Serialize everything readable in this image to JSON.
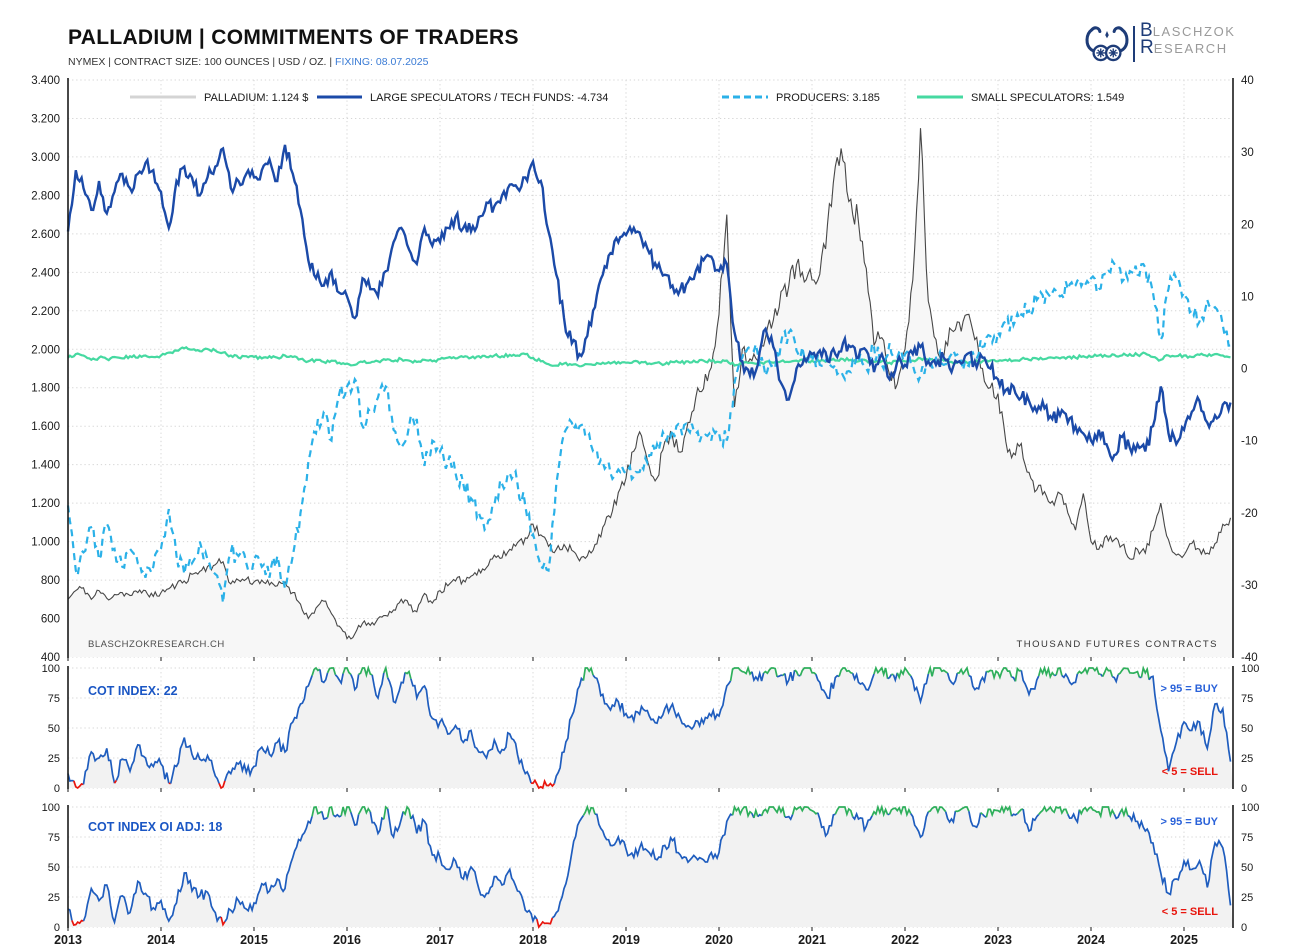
{
  "header": {
    "title": "PALLADIUM | COMMITMENTS OF TRADERS",
    "subtitle": "NYMEX | CONTRACT SIZE: 100 OUNCES | USD / OZ. |",
    "fixing": "FIXING: 08.07.2025"
  },
  "logo": {
    "line1_initial": "B",
    "line1_rest": "LASCHZOK",
    "line2_initial": "R",
    "line2_rest": "ESEARCH"
  },
  "watermark": "BLASCHZOKRESEARCH.CH",
  "right_note": "THOUSAND FUTURES CONTRACTS",
  "annotations": {
    "buy": "> 95 = BUY",
    "sell": "< 5 = SELL"
  },
  "colors": {
    "palladium": "#474747",
    "palladium_fill": "#f7f7f7",
    "palladium_legend": "#d4d4d4",
    "large_specs": "#1b4aa8",
    "producers": "#2bb1e8",
    "small_specs": "#46d9a1",
    "cot_blue": "#1f5dbe",
    "cot_green": "#2eaf5b",
    "cot_red": "#e8150d",
    "cot_fill": "#f2f2f2",
    "grid": "#d6d6d6",
    "axis": "#1a1a1a",
    "label_blue": "#1a56c4"
  },
  "chart_data": {
    "type": "line",
    "x_start": 2013.0,
    "x_step": "1 month",
    "x_ticks": [
      "2013",
      "2014",
      "2015",
      "2016",
      "2017",
      "2018",
      "2019",
      "2020",
      "2021",
      "2022",
      "2023",
      "2024",
      "2025"
    ],
    "main": {
      "left_axis": {
        "min": 400,
        "max": 3400,
        "tick_step": 200,
        "tick_labels": [
          "3.400",
          "3.200",
          "3.000",
          "2.800",
          "2.600",
          "2.400",
          "2.200",
          "2.000",
          "1.800",
          "1.600",
          "1.400",
          "1.200",
          "1.000",
          "800",
          "600",
          "400"
        ]
      },
      "right_axis": {
        "min": -40,
        "max": 40,
        "tick_step": 10,
        "tick_labels": [
          "40",
          "30",
          "20",
          "10",
          "0",
          "-10",
          "-20",
          "-30",
          "-40"
        ]
      },
      "series": [
        {
          "name": "PALLADIUM: 1.124 $",
          "axis": "left",
          "style": "solid-fill",
          "noise": 0.027,
          "values": [
            700,
            745,
            760,
            700,
            745,
            705,
            725,
            735,
            720,
            735,
            745,
            715,
            735,
            755,
            775,
            795,
            830,
            845,
            870,
            880,
            895,
            780,
            800,
            805,
            790,
            800,
            775,
            770,
            790,
            735,
            675,
            600,
            655,
            690,
            625,
            560,
            495,
            520,
            575,
            565,
            600,
            615,
            645,
            700,
            670,
            635,
            730,
            680,
            745,
            770,
            795,
            800,
            820,
            855,
            865,
            930,
            915,
            960,
            995,
            1020,
            1090,
            1035,
            975,
            960,
            985,
            955,
            900,
            925,
            985,
            1075,
            1125,
            1255,
            1330,
            1470,
            1550,
            1390,
            1330,
            1520,
            1545,
            1465,
            1620,
            1750,
            1795,
            1905,
            2180,
            2700,
            1700,
            2000,
            1950,
            1940,
            2060,
            2150,
            2300,
            2330,
            2440,
            2350,
            2360,
            2390,
            2650,
            2950,
            2980,
            2780,
            2660,
            2420,
            2020,
            2060,
            1870,
            1820,
            2000,
            2360,
            3150,
            2250,
            2050,
            1960,
            2100,
            2140,
            2180,
            2050,
            1900,
            1800,
            1770,
            1520,
            1460,
            1510,
            1360,
            1270,
            1260,
            1210,
            1250,
            1150,
            1060,
            1250,
            1000,
            960,
            1030,
            1010,
            980,
            910,
            960,
            940,
            1060,
            1200,
            1010,
            930,
            930,
            990,
            960,
            940,
            990,
            1090,
            1124
          ]
        },
        {
          "name": "LARGE SPECULATORS / TECH FUNDS: -4.734",
          "axis": "right",
          "style": "solid",
          "noise": 1.05,
          "values": [
            19,
            27.5,
            25,
            22,
            26,
            21.5,
            24.5,
            27,
            25,
            27,
            28.5,
            27.5,
            24.5,
            19.5,
            26,
            28,
            26.5,
            24,
            26.5,
            28,
            30.5,
            25,
            26,
            27,
            26.5,
            27.5,
            29,
            26,
            31,
            27,
            22,
            15,
            12.5,
            11.5,
            13.5,
            10.5,
            10,
            7,
            12.5,
            11,
            10,
            13.5,
            17.5,
            19.5,
            16.5,
            14.5,
            19.5,
            17,
            17.5,
            19.5,
            21,
            19.5,
            19,
            21,
            23,
            22.5,
            24,
            25.5,
            25,
            26.5,
            28.7,
            26,
            19,
            13,
            7,
            3.5,
            2,
            4.5,
            8.5,
            13,
            16,
            17.5,
            18.5,
            19.5,
            18,
            16,
            14,
            13,
            11.5,
            11,
            12,
            13.5,
            15,
            15.5,
            13.5,
            14.5,
            5,
            1,
            -1,
            0.5,
            5.5,
            3,
            -2,
            -4.3,
            0,
            1.5,
            2,
            2.5,
            1,
            2,
            3.5,
            3,
            1.5,
            2.5,
            -0.5,
            2,
            -1.5,
            1,
            0.5,
            2,
            3,
            1,
            0.5,
            1.5,
            -0.5,
            1,
            2,
            1,
            1.5,
            0,
            -1.5,
            -3,
            -2.5,
            -4,
            -4.5,
            -6,
            -5.5,
            -7,
            -6.5,
            -7.5,
            -8,
            -9,
            -10,
            -8.5,
            -10.5,
            -12,
            -9.5,
            -11,
            -10.5,
            -11.5,
            -8,
            -2.5,
            -9,
            -10.5,
            -8.5,
            -6,
            -4.5,
            -7.5,
            -6.5,
            -5,
            -4.734
          ]
        },
        {
          "name": "PRODUCERS: 3.185",
          "axis": "right",
          "style": "dashed",
          "noise": 1.35,
          "values": [
            -19,
            -28,
            -25.5,
            -22,
            -26.5,
            -21.5,
            -25,
            -27.5,
            -25,
            -27,
            -29,
            -27.5,
            -25,
            -19.5,
            -26,
            -28.5,
            -27,
            -24,
            -26.5,
            -28.5,
            -32.5,
            -25.5,
            -26,
            -27,
            -26.5,
            -27.5,
            -29,
            -26,
            -30.5,
            -26,
            -20,
            -13,
            -9,
            -6,
            -10,
            -3.5,
            -2.5,
            -1.5,
            -8,
            -6,
            -4,
            -2.5,
            -8.5,
            -11,
            -8,
            -7,
            -13.5,
            -10,
            -11.5,
            -13,
            -14.5,
            -16,
            -18,
            -20,
            -22,
            -19,
            -16,
            -14.5,
            -16,
            -19,
            -23,
            -27.5,
            -28,
            -16,
            -9,
            -7.5,
            -8,
            -9.5,
            -11.5,
            -13,
            -14.5,
            -14,
            -14.5,
            -15,
            -13.5,
            -12,
            -10.5,
            -9.5,
            -8.5,
            -8,
            -8.5,
            -9,
            -9.5,
            -10,
            -9,
            -10,
            -2,
            1.5,
            3,
            2,
            -1,
            0.5,
            3.5,
            5,
            2.5,
            1.5,
            1,
            0.5,
            1.5,
            0.5,
            -1,
            -0.5,
            1,
            0,
            3,
            0.5,
            3.5,
            1.5,
            2,
            0.5,
            -1,
            1,
            1.5,
            0.5,
            2,
            1.5,
            0.5,
            1.5,
            3,
            4.5,
            5,
            6.5,
            6,
            7.5,
            8,
            9.5,
            9,
            10.5,
            10,
            11,
            11.5,
            12,
            12.5,
            11,
            13,
            14.5,
            12,
            13.5,
            13,
            14,
            10.5,
            4,
            11,
            12.5,
            10.5,
            8,
            6.5,
            9.5,
            8.5,
            6,
            3.185
          ]
        },
        {
          "name": "SMALL SPECULATORS: 1.549",
          "axis": "right",
          "style": "solid",
          "noise": 0.22,
          "values": [
            1.5,
            2,
            1.8,
            1.2,
            1.5,
            1.3,
            1.6,
            1.4,
            1.7,
            1.5,
            1.8,
            1.6,
            1.8,
            2.2,
            2.5,
            2.8,
            2.6,
            2.4,
            2.7,
            2.5,
            2.2,
            1.8,
            1.5,
            1.7,
            1.6,
            1.4,
            1.7,
            1.5,
            1.8,
            1.6,
            1.3,
            1,
            1.2,
            0.9,
            1.1,
            0.8,
            0.7,
            0.5,
            0.9,
            0.8,
            1,
            1.2,
            1,
            1.3,
            1.1,
            0.9,
            1.2,
            1,
            1.3,
            1.5,
            1.4,
            1.6,
            1.5,
            1.7,
            1.6,
            1.8,
            1.7,
            1.9,
            1.8,
            2,
            1.5,
            1,
            0.6,
            0.4,
            0.7,
            0.5,
            0.3,
            0.6,
            0.5,
            0.8,
            0.7,
            0.9,
            0.8,
            1,
            0.9,
            0.7,
            0.8,
            0.6,
            0.9,
            0.8,
            1,
            0.9,
            1.1,
            1,
            0.9,
            1.1,
            0.4,
            0.6,
            0.8,
            0.7,
            0.9,
            0.8,
            1,
            0.9,
            1.1,
            1,
            1.1,
            1,
            1.2,
            1.1,
            1.3,
            1.2,
            1,
            1.1,
            0.9,
            1,
            0.8,
            0.9,
            1,
            1.1,
            1.4,
            1.2,
            1,
            1.1,
            0.9,
            1,
            0.8,
            0.9,
            1,
            1.1,
            1,
            1.2,
            1.1,
            1.3,
            1.2,
            1.4,
            1.3,
            1.5,
            1.4,
            1.6,
            1.5,
            1.7,
            1.6,
            1.8,
            1.7,
            1.9,
            1.8,
            2,
            1.9,
            2.1,
            1.6,
            1.2,
            1.8,
            1.7,
            1.8,
            1.6,
            1.9,
            1.7,
            2,
            1.8,
            1.549
          ]
        }
      ]
    },
    "cot_panels": [
      {
        "label": "COT INDEX: 22",
        "axis": {
          "min": 0,
          "max": 100,
          "tick_labels": [
            "100",
            "75",
            "50",
            "25",
            "0"
          ]
        },
        "noise": 5,
        "values": [
          12,
          1,
          3,
          30,
          25,
          33,
          4,
          24,
          14,
          36,
          25,
          18,
          20,
          4,
          18,
          42,
          28,
          24,
          27,
          10,
          1,
          12,
          20,
          13,
          18,
          34,
          28,
          38,
          30,
          55,
          70,
          85,
          100,
          88,
          100,
          90,
          100,
          82,
          100,
          95,
          75,
          100,
          72,
          88,
          97,
          75,
          85,
          58,
          55,
          45,
          52,
          38,
          48,
          30,
          25,
          40,
          32,
          45,
          28,
          12,
          4,
          1,
          2,
          10,
          30,
          60,
          85,
          100,
          92,
          78,
          65,
          72,
          62,
          56,
          68,
          60,
          54,
          66,
          70,
          58,
          52,
          56,
          54,
          60,
          60,
          85,
          100,
          97,
          95,
          90,
          97,
          100,
          94,
          90,
          97,
          100,
          96,
          88,
          75,
          92,
          100,
          96,
          88,
          82,
          95,
          100,
          92,
          96,
          100,
          90,
          72,
          95,
          100,
          98,
          88,
          96,
          100,
          82,
          92,
          98,
          96,
          100,
          92,
          98,
          78,
          90,
          100,
          96,
          100,
          92,
          88,
          97,
          100,
          95,
          100,
          92,
          98,
          96,
          97,
          96,
          93,
          48,
          14,
          38,
          55,
          48,
          55,
          33,
          70,
          66,
          22
        ]
      },
      {
        "label": "COT INDEX OI ADJ: 18",
        "axis": {
          "min": 0,
          "max": 100,
          "tick_labels": [
            "100",
            "75",
            "50",
            "25",
            "0"
          ]
        },
        "noise": 5,
        "values": [
          15,
          2,
          5,
          32,
          22,
          35,
          4,
          26,
          12,
          38,
          28,
          16,
          22,
          5,
          20,
          45,
          30,
          26,
          29,
          12,
          2,
          14,
          22,
          15,
          20,
          36,
          30,
          40,
          32,
          58,
          72,
          88,
          100,
          90,
          100,
          92,
          100,
          85,
          100,
          96,
          78,
          100,
          75,
          90,
          98,
          78,
          88,
          60,
          58,
          48,
          55,
          40,
          50,
          32,
          28,
          42,
          35,
          48,
          30,
          14,
          5,
          2,
          3,
          12,
          32,
          62,
          88,
          100,
          94,
          80,
          68,
          75,
          65,
          58,
          70,
          62,
          56,
          68,
          72,
          60,
          54,
          58,
          56,
          62,
          62,
          88,
          100,
          98,
          96,
          92,
          98,
          100,
          96,
          92,
          98,
          100,
          97,
          90,
          78,
          94,
          100,
          97,
          90,
          84,
          96,
          100,
          94,
          97,
          100,
          92,
          75,
          96,
          100,
          98,
          90,
          97,
          100,
          84,
          94,
          98,
          97,
          100,
          94,
          98,
          80,
          92,
          100,
          97,
          100,
          94,
          90,
          98,
          100,
          96,
          100,
          94,
          98,
          92,
          88,
          80,
          70,
          45,
          28,
          40,
          55,
          48,
          55,
          33,
          70,
          66,
          18
        ]
      }
    ],
    "thresholds": {
      "buy": 95,
      "sell": 5
    }
  }
}
